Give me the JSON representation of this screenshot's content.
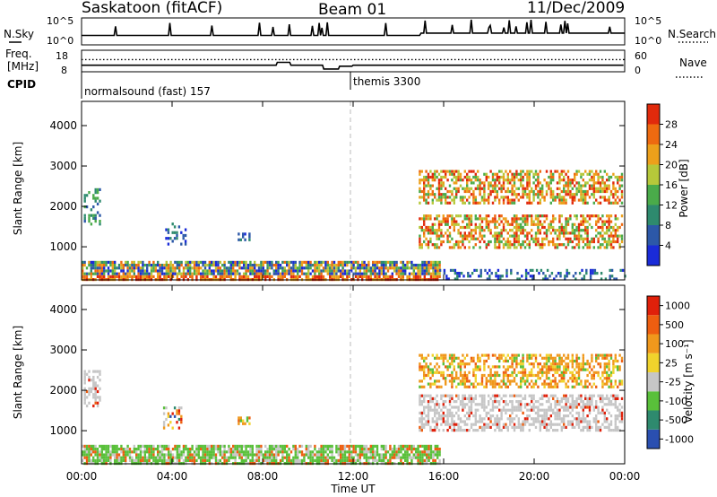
{
  "header": {
    "station": "Saskatoon (fitACF)",
    "beam": "Beam 01",
    "date": "11/Dec/2009"
  },
  "summary_panel": {
    "nsky_label": "N.Sky",
    "nsearch_label": "N.Search",
    "freq_label_1": "Freq.",
    "freq_label_2": "[MHz]",
    "nave_label": "Nave",
    "cpid_label": "CPID",
    "left_ticks_top": [
      "10^5",
      "10^0"
    ],
    "right_ticks_top": [
      "10^5",
      "10^0"
    ],
    "left_ticks_freq": [
      "18",
      "8"
    ],
    "right_ticks_nave": [
      "60",
      "0"
    ],
    "cpid_segments": [
      {
        "label": "normalsound (fast) 157",
        "start_hour": 0
      },
      {
        "label": "themis 3300",
        "start_hour": 12
      }
    ]
  },
  "axes": {
    "xlabel": "Time UT",
    "xticks": [
      "00:00",
      "04:00",
      "08:00",
      "12:00",
      "16:00",
      "20:00",
      "00:00"
    ],
    "ylabel": "Slant Range [km]",
    "yticks": [
      "1000",
      "2000",
      "3000",
      "4000"
    ]
  },
  "colorbars": {
    "power": {
      "label": "Power [dB]",
      "ticks": [
        "4",
        "8",
        "12",
        "16",
        "20",
        "24",
        "28"
      ],
      "colors": [
        "#1a2bd8",
        "#2c58a8",
        "#2e8a6e",
        "#4aab4a",
        "#b6c83a",
        "#eda01b",
        "#ee6a10",
        "#e12a0c"
      ]
    },
    "velocity": {
      "label": "Velocity [m s⁻¹]",
      "ticks": [
        "1000",
        "500",
        "100",
        "25",
        "-25",
        "-100",
        "-500",
        "-1000"
      ],
      "colors": [
        "#2a4fb0",
        "#2e8a6e",
        "#59c03a",
        "#c6c6c6",
        "#f0d32c",
        "#f0981c",
        "#ee5e10",
        "#e0200a"
      ]
    }
  },
  "chart_data": [
    {
      "type": "heatmap",
      "name": "Power",
      "x_range_hours": [
        0,
        24
      ],
      "y_range_km": [
        180,
        4600
      ],
      "scatter_regions": [
        {
          "t": [
            0.0,
            15.8
          ],
          "r": [
            180,
            650
          ],
          "level": "mixed_high"
        },
        {
          "t": [
            15.8,
            24.0
          ],
          "r": [
            180,
            450
          ],
          "level": "low"
        },
        {
          "t": [
            0.1,
            0.8
          ],
          "r": [
            1550,
            2450
          ],
          "level": "mid"
        },
        {
          "t": [
            3.6,
            4.6
          ],
          "r": [
            1100,
            1600
          ],
          "level": "low"
        },
        {
          "t": [
            6.9,
            7.4
          ],
          "r": [
            1150,
            1350
          ],
          "level": "low"
        },
        {
          "t": [
            14.9,
            23.9
          ],
          "r": [
            2100,
            2900
          ],
          "level": "high"
        },
        {
          "t": [
            14.9,
            23.9
          ],
          "r": [
            1000,
            1800
          ],
          "level": "high"
        }
      ]
    },
    {
      "type": "heatmap",
      "name": "Velocity",
      "x_range_hours": [
        0,
        24
      ],
      "y_range_km": [
        180,
        4600
      ],
      "scatter_regions": [
        {
          "t": [
            0.0,
            15.8
          ],
          "r": [
            180,
            650
          ],
          "level": "green"
        },
        {
          "t": [
            0.1,
            0.8
          ],
          "r": [
            1600,
            2500
          ],
          "level": "grey"
        },
        {
          "t": [
            3.6,
            4.4
          ],
          "r": [
            1100,
            1600
          ],
          "level": "mixed"
        },
        {
          "t": [
            6.9,
            7.4
          ],
          "r": [
            1150,
            1350
          ],
          "level": "orange"
        },
        {
          "t": [
            14.9,
            23.9
          ],
          "r": [
            2100,
            2900
          ],
          "level": "orange"
        },
        {
          "t": [
            14.9,
            23.9
          ],
          "r": [
            1000,
            1900
          ],
          "level": "grey"
        }
      ]
    }
  ]
}
